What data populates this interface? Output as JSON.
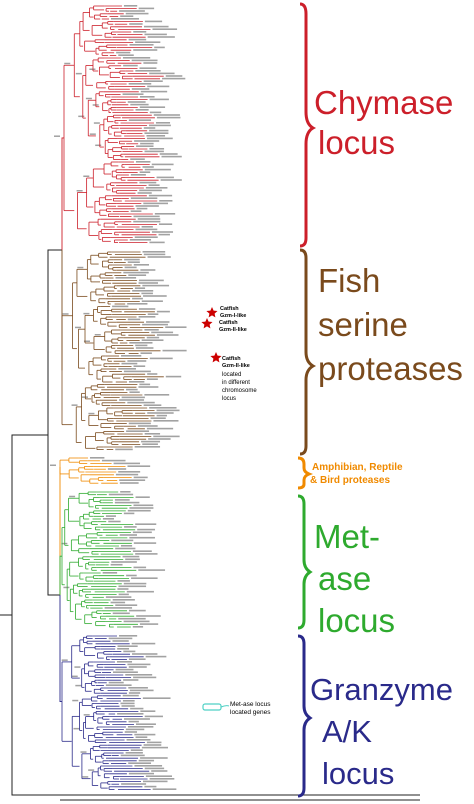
{
  "clades": [
    {
      "id": "chymase",
      "lines": [
        "Chymase",
        "locus"
      ],
      "color": "#cc1f2a"
    },
    {
      "id": "fish",
      "lines": [
        "Fish",
        "serine",
        "proteases"
      ],
      "color": "#7a4a1c"
    },
    {
      "id": "amphibian",
      "lines": [
        "Amphibian, Reptile",
        "& Bird  proteases"
      ],
      "color": "#f08a00"
    },
    {
      "id": "metase",
      "lines": [
        "Met-",
        "ase",
        "locus"
      ],
      "color": "#2eaa2e"
    },
    {
      "id": "granzyme",
      "lines": [
        "Granzyme",
        "A/K",
        "locus"
      ],
      "color": "#2a2a8a"
    }
  ],
  "annotations": {
    "catfish1": [
      "Catfish",
      "Gzm-I-like"
    ],
    "catfish2": [
      "Catfish",
      "Gzm-II-like"
    ],
    "catfish3": [
      "Catfish",
      "Gzm-II-like",
      "located",
      "in different",
      "chromosome",
      "locus"
    ],
    "metase_genes": [
      "Met-ase locus",
      "located genes"
    ]
  },
  "colors": {
    "root": "#222222",
    "star": "#cc0000",
    "highlight_box": "#4fd1c5"
  }
}
